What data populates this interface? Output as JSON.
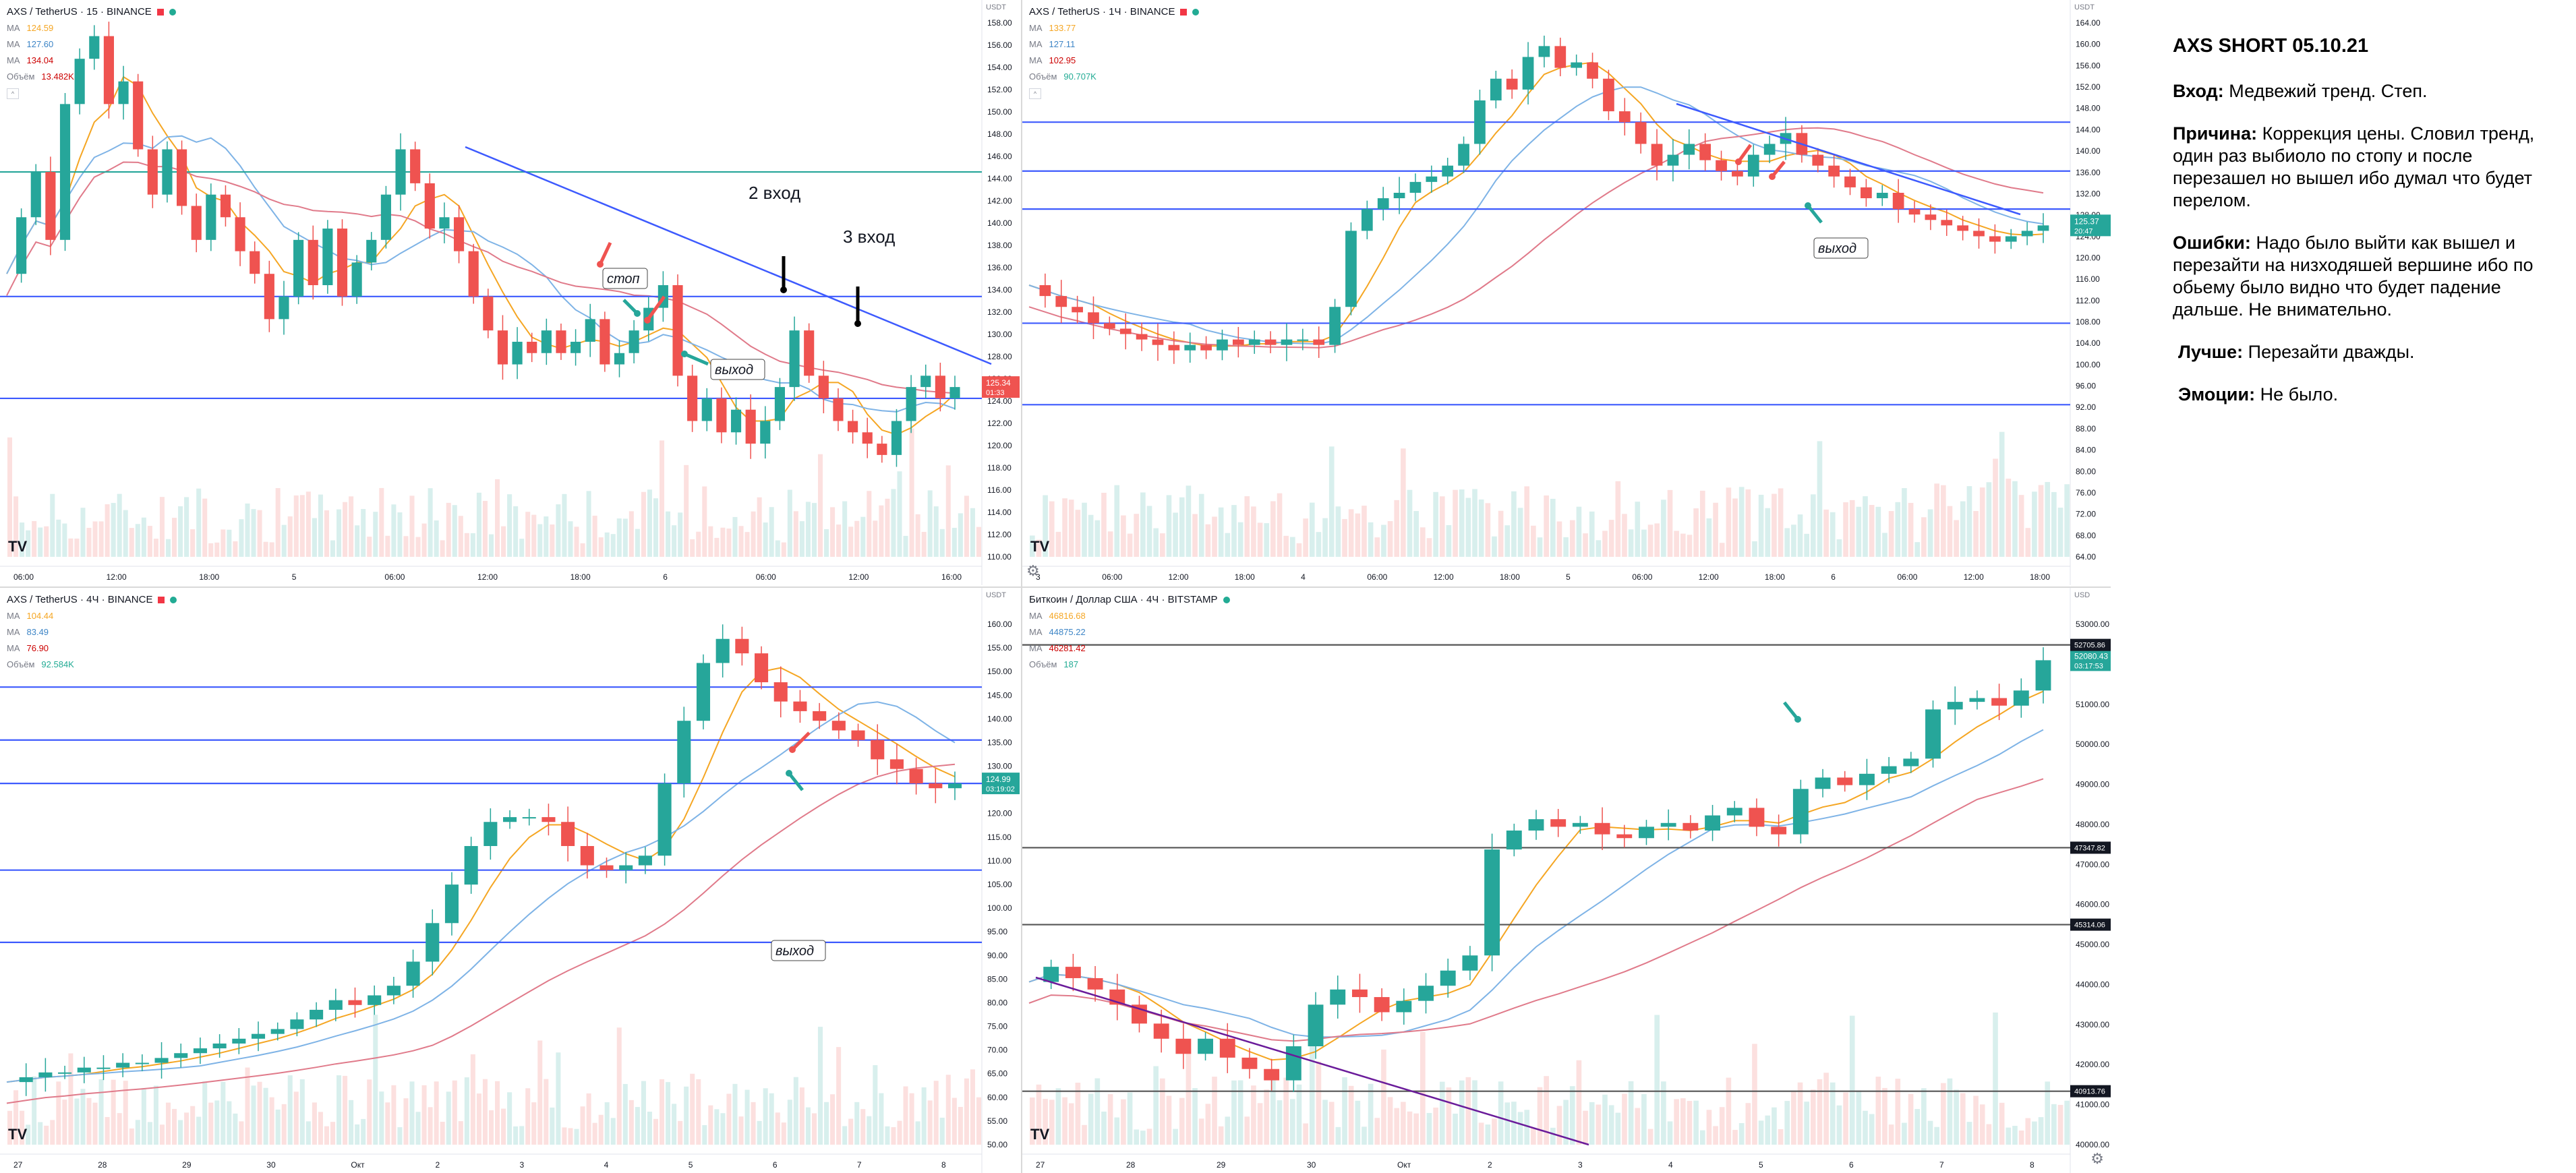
{
  "notes": {
    "title": "AXS SHORT 05.10.21",
    "entry_label": "Вход:",
    "entry_text": "Медвежий тренд. Степ.",
    "reason_label": "Причина:",
    "reason_text": "Коррекция цены. Словил тренд, один раз выбиоло по стопу и после перезашел но вышел ибо думал что будет перелом.",
    "errors_label": "Ошибки:",
    "errors_text": "Надо было выйти как вышел и перезайти на низходяшей вершине ибо по обьему было видно что будет падение дальше. Не внимательно.",
    "better_label": "Лучше:",
    "better_text": "Перезайти дважды.",
    "emotions_label": "Эмоции:",
    "emotions_text": "Не было."
  },
  "chart_data": [
    {
      "id": "p1",
      "type": "candlestick",
      "symbol": "AXS / TetherUS · 15 · BINANCE",
      "ma": [
        {
          "label": "MA",
          "value": "124.59",
          "color": "#f5a623"
        },
        {
          "label": "MA",
          "value": "127.60",
          "color": "#6fa8dc"
        },
        {
          "label": "MA",
          "value": "134.04",
          "color": "#e06666"
        }
      ],
      "volume_label": "Объём",
      "volume_value": "13.482K",
      "currency": "USDT",
      "ylim": [
        110,
        158
      ],
      "y_ticks": [
        "158.00",
        "156.00",
        "154.00",
        "152.00",
        "150.00",
        "148.00",
        "146.00",
        "144.00",
        "142.00",
        "140.00",
        "138.00",
        "136.00",
        "134.00",
        "132.00",
        "130.00",
        "128.00",
        "126.00",
        "124.00",
        "122.00",
        "120.00",
        "118.00",
        "116.00",
        "114.00",
        "112.00",
        "110.00"
      ],
      "x_ticks": [
        "06:00",
        "12:00",
        "18:00",
        "5",
        "06:00",
        "12:00",
        "18:00",
        "6",
        "06:00",
        "12:00",
        "16:00"
      ],
      "price_tag": "125.34",
      "price_tag2": "01:33",
      "annotations": [
        "2 вход",
        "3 вход",
        "стоп",
        "выход"
      ],
      "ohlc_path": [
        135,
        140,
        144,
        138,
        150,
        154,
        156,
        150,
        152,
        146,
        142,
        146,
        141,
        138,
        142,
        140,
        137,
        135,
        131,
        133,
        138,
        134,
        139,
        133,
        136,
        138,
        142,
        146,
        143,
        139,
        140,
        137,
        133,
        130,
        127,
        129,
        128,
        130,
        128,
        129,
        131,
        127,
        128,
        130,
        132,
        134,
        126,
        122,
        124,
        121,
        123,
        120,
        122,
        125,
        130,
        126,
        124,
        122,
        121,
        120,
        119,
        122,
        125,
        126,
        124,
        125
      ]
    },
    {
      "id": "p2",
      "type": "candlestick",
      "symbol": "AXS / TetherUS · 1Ч · BINANCE",
      "ma": [
        {
          "label": "MA",
          "value": "133.77",
          "color": "#f5a623"
        },
        {
          "label": "MA",
          "value": "127.11",
          "color": "#6fa8dc"
        },
        {
          "label": "MA",
          "value": "102.95",
          "color": "#e06666"
        }
      ],
      "volume_label": "Объём",
      "volume_value": "90.707K",
      "currency": "USDT",
      "ylim": [
        64,
        164
      ],
      "y_ticks": [
        "164.00",
        "160.00",
        "156.00",
        "152.00",
        "148.00",
        "144.00",
        "140.00",
        "136.00",
        "132.00",
        "128.00",
        "124.00",
        "120.00",
        "116.00",
        "112.00",
        "108.00",
        "104.00",
        "100.00",
        "96.00",
        "92.00",
        "88.00",
        "84.00",
        "80.00",
        "76.00",
        "72.00",
        "68.00",
        "64.00"
      ],
      "x_ticks": [
        "3",
        "06:00",
        "12:00",
        "18:00",
        "4",
        "06:00",
        "12:00",
        "18:00",
        "5",
        "06:00",
        "12:00",
        "18:00",
        "6",
        "06:00",
        "12:00",
        "18:00"
      ],
      "price_tag": "125.37",
      "price_tag2": "20:47",
      "annotations": [
        "выход"
      ],
      "ohlc_path": [
        114,
        112,
        110,
        109,
        107,
        106,
        105,
        104,
        103,
        102,
        103,
        102,
        104,
        103,
        104,
        103,
        104,
        104,
        103,
        110,
        124,
        128,
        130,
        131,
        133,
        134,
        136,
        140,
        148,
        152,
        150,
        156,
        158,
        154,
        155,
        152,
        146,
        144,
        140,
        136,
        138,
        140,
        137,
        135,
        134,
        138,
        140,
        142,
        138,
        136,
        134,
        132,
        130,
        131,
        128,
        127,
        126,
        125,
        124,
        123,
        122,
        123,
        124,
        125
      ]
    },
    {
      "id": "p3",
      "type": "candlestick",
      "symbol": "AXS / TetherUS · 4Ч · BINANCE",
      "ma": [
        {
          "label": "MA",
          "value": "104.44",
          "color": "#f5a623"
        },
        {
          "label": "MA",
          "value": "83.49",
          "color": "#6fa8dc"
        },
        {
          "label": "MA",
          "value": "76.90",
          "color": "#e06666"
        }
      ],
      "volume_label": "Объём",
      "volume_value": "92.584K",
      "currency": "USDT",
      "ylim": [
        50,
        160
      ],
      "y_ticks": [
        "160.00",
        "155.00",
        "150.00",
        "145.00",
        "140.00",
        "135.00",
        "130.00",
        "125.00",
        "120.00",
        "115.00",
        "110.00",
        "105.00",
        "100.00",
        "95.00",
        "90.00",
        "85.00",
        "80.00",
        "75.00",
        "70.00",
        "65.00",
        "60.00",
        "55.00",
        "50.00"
      ],
      "x_ticks": [
        "27",
        "28",
        "29",
        "30",
        "Окт",
        "2",
        "3",
        "4",
        "5",
        "6",
        "7",
        "8"
      ],
      "price_tag": "124.99",
      "price_tag2": "03:19:02",
      "annotations": [
        "выход"
      ],
      "ohlc_path": [
        63,
        64,
        65,
        65,
        66,
        66,
        67,
        67,
        68,
        69,
        70,
        71,
        72,
        73,
        74,
        76,
        78,
        80,
        79,
        81,
        83,
        88,
        96,
        104,
        112,
        117,
        118,
        118,
        117,
        112,
        108,
        107,
        108,
        110,
        125,
        138,
        150,
        155,
        152,
        146,
        142,
        140,
        138,
        136,
        134,
        130,
        128,
        125,
        124,
        125
      ]
    },
    {
      "id": "p4",
      "type": "candlestick",
      "symbol": "Биткоин / Доллар США · 4Ч · BITSTAMP",
      "ma": [
        {
          "label": "MA",
          "value": "46816.68",
          "color": "#f5a623"
        },
        {
          "label": "MA",
          "value": "44875.22",
          "color": "#6fa8dc"
        },
        {
          "label": "MA",
          "value": "46281.42",
          "color": "#e06666"
        }
      ],
      "volume_label": "Объём",
      "volume_value": "187",
      "currency": "USD",
      "ylim": [
        39500,
        53500
      ],
      "y_ticks": [
        "53000.00",
        "52000.00",
        "51000.00",
        "50000.00",
        "49000.00",
        "48000.00",
        "47000.00",
        "46000.00",
        "45000.00",
        "44000.00",
        "43000.00",
        "42000.00",
        "41000.00",
        "40000.00"
      ],
      "x_ticks": [
        "27",
        "28",
        "29",
        "30",
        "Окт",
        "2",
        "3",
        "4",
        "5",
        "6",
        "7",
        "8"
      ],
      "level_tags": [
        "52705.86",
        "47347.82",
        "45314.06",
        "40913.76"
      ],
      "price_tag": "52080.43",
      "price_tag2": "03:17:53",
      "annotations": [],
      "ohlc_path": [
        43800,
        44200,
        43900,
        43600,
        43200,
        42700,
        42300,
        41900,
        42300,
        41800,
        41500,
        41200,
        42100,
        43200,
        43600,
        43400,
        43000,
        43300,
        43700,
        44100,
        44500,
        47300,
        47800,
        48100,
        47900,
        48000,
        47700,
        47600,
        47900,
        48000,
        47800,
        48200,
        48400,
        47900,
        47700,
        48900,
        49200,
        49000,
        49300,
        49500,
        49700,
        51000,
        51200,
        51300,
        51100,
        51500,
        52300
      ]
    }
  ]
}
